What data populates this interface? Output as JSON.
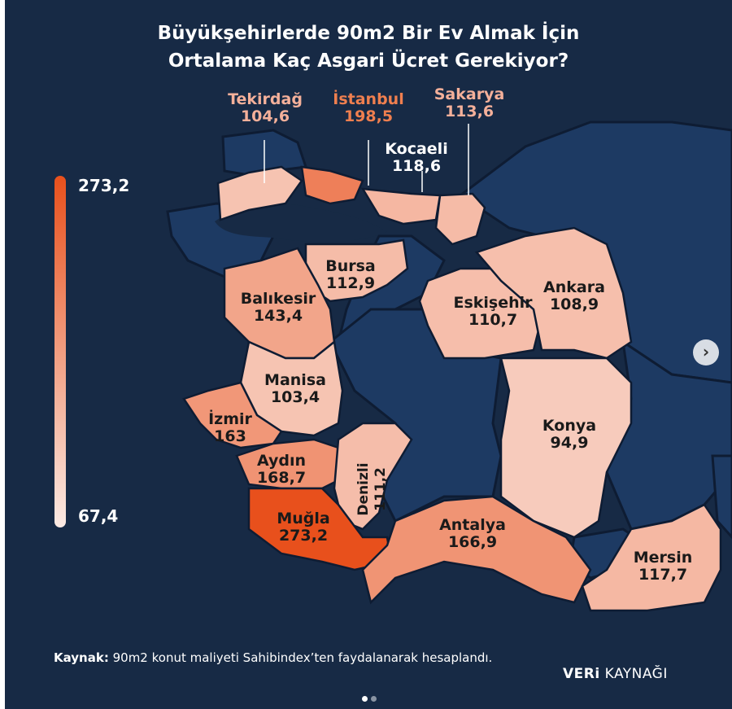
{
  "title_line1": "Büyükşehirlerde 90m2 Bir Ev Almak İçin",
  "title_line2": "Ortalama Kaç Asgari Ücret Gerekiyor?",
  "scale": {
    "max": "273,2",
    "min": "67,4",
    "max_value": 273.2,
    "min_value": 67.4,
    "color_high": "#e8501c",
    "color_low": "#fbeae4"
  },
  "colors": {
    "background": "#172a45",
    "land": "#1d3a63",
    "border": "#0e1c33"
  },
  "provinces": [
    {
      "name": "Tekirdağ",
      "value": "104,6"
    },
    {
      "name": "İstanbul",
      "value": "198,5"
    },
    {
      "name": "Sakarya",
      "value": "113,6"
    },
    {
      "name": "Kocaeli",
      "value": "118,6"
    },
    {
      "name": "Bursa",
      "value": "112,9"
    },
    {
      "name": "Balıkesir",
      "value": "143,4"
    },
    {
      "name": "Eskişehir",
      "value": "110,7"
    },
    {
      "name": "Ankara",
      "value": "108,9"
    },
    {
      "name": "Manisa",
      "value": "103,4"
    },
    {
      "name": "İzmir",
      "value": "163"
    },
    {
      "name": "Aydın",
      "value": "168,7"
    },
    {
      "name": "Denizli",
      "value": "111,2"
    },
    {
      "name": "Konya",
      "value": "94,9"
    },
    {
      "name": "Muğla",
      "value": "273,2"
    },
    {
      "name": "Antalya",
      "value": "166,9"
    },
    {
      "name": "Mersin",
      "value": "117,7"
    }
  ],
  "source": {
    "label": "Kaynak:",
    "text": " 90m2 konut maliyeti Sahibindex’ten faydalanarak hesaplandı."
  },
  "brand": {
    "bold": "VERi",
    "light": " KAYNAĞI"
  },
  "next_icon": "chevron-right-icon",
  "pagination": {
    "current": 1,
    "total": 2
  }
}
